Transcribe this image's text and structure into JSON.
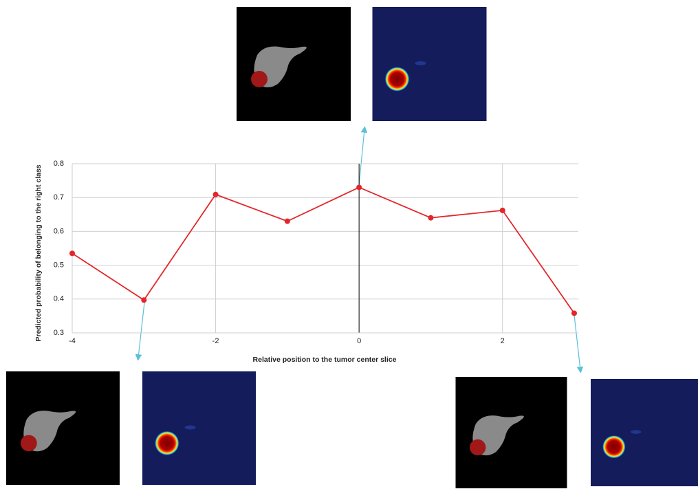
{
  "chart_data": {
    "type": "line",
    "x_label": "Relative position to the tumor center slice",
    "y_label": "Predicted probability of belonging to the right class",
    "x": [
      -4,
      -3,
      -2,
      -1,
      0,
      1,
      2,
      3
    ],
    "series": [
      {
        "color": "#e3262b",
        "values": [
          0.535,
          0.397,
          0.709,
          0.63,
          0.73,
          0.64,
          0.662,
          0.358
        ]
      }
    ],
    "xlim": [
      -4,
      3
    ],
    "xticks": [
      -4,
      -2,
      0,
      2
    ],
    "ylim": [
      0.3,
      0.8
    ],
    "yticks": [
      0.3,
      0.4,
      0.5,
      0.6,
      0.7,
      0.8
    ],
    "grid": true
  }
}
